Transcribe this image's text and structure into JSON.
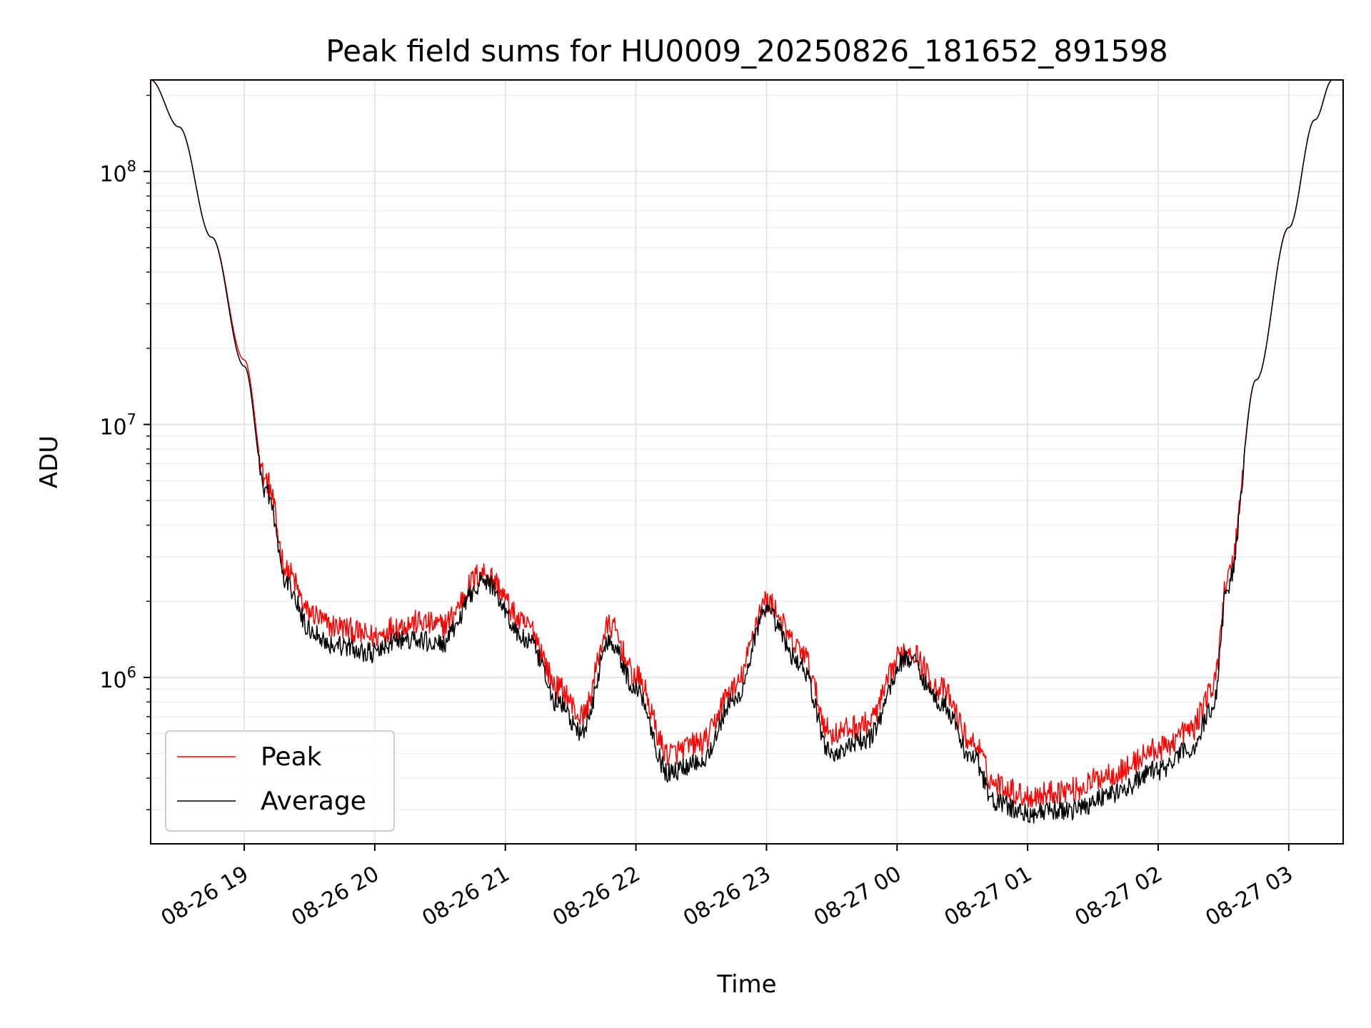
{
  "chart_data": {
    "type": "line",
    "title": "Peak field sums for HU0009_20250826_181652_891598",
    "xlabel": "Time",
    "ylabel": "ADU",
    "y_scale": "log",
    "ylim": [
      220000,
      230000000
    ],
    "xlim": [
      "2025-08-26 18:17",
      "2025-08-27 03:25"
    ],
    "grid": true,
    "legend_position": "lower-left",
    "x_tick_labels": [
      "08-26 19",
      "08-26 20",
      "08-26 21",
      "08-26 22",
      "08-26 23",
      "08-27 00",
      "08-27 01",
      "08-27 02",
      "08-27 03"
    ],
    "x_ticks": [
      "2025-08-26 19:00",
      "2025-08-26 20:00",
      "2025-08-26 21:00",
      "2025-08-26 22:00",
      "2025-08-26 23:00",
      "2025-08-27 00:00",
      "2025-08-27 01:00",
      "2025-08-27 02:00",
      "2025-08-27 03:00"
    ],
    "y_tick_labels": [
      {
        "value": 1000000,
        "base": "10",
        "exp": "6"
      },
      {
        "value": 10000000,
        "base": "10",
        "exp": "7"
      },
      {
        "value": 100000000,
        "base": "10",
        "exp": "8"
      }
    ],
    "series": [
      {
        "name": "Peak",
        "color": "#ff0000",
        "x": [
          "2025-08-26 18:17",
          "2025-08-26 18:30",
          "2025-08-26 18:45",
          "2025-08-26 19:00",
          "2025-08-26 19:10",
          "2025-08-26 19:20",
          "2025-08-26 19:30",
          "2025-08-26 19:40",
          "2025-08-26 20:00",
          "2025-08-26 20:10",
          "2025-08-26 20:20",
          "2025-08-26 20:30",
          "2025-08-26 20:50",
          "2025-08-26 21:10",
          "2025-08-26 21:25",
          "2025-08-26 21:35",
          "2025-08-26 21:48",
          "2025-08-26 22:00",
          "2025-08-26 22:15",
          "2025-08-26 22:30",
          "2025-08-26 22:45",
          "2025-08-26 23:00",
          "2025-08-26 23:15",
          "2025-08-26 23:30",
          "2025-08-26 23:45",
          "2025-08-27 00:05",
          "2025-08-27 00:20",
          "2025-08-27 00:35",
          "2025-08-27 00:45",
          "2025-08-27 01:00",
          "2025-08-27 01:20",
          "2025-08-27 01:40",
          "2025-08-27 02:00",
          "2025-08-27 02:15",
          "2025-08-27 02:25",
          "2025-08-27 02:32",
          "2025-08-27 02:45",
          "2025-08-27 03:00",
          "2025-08-27 03:12",
          "2025-08-27 03:20"
        ],
        "y": [
          230000000,
          150000000,
          55000000,
          18000000,
          6000000,
          2600000,
          1800000,
          1600000,
          1450000,
          1600000,
          1650000,
          1600000,
          2600000,
          1600000,
          900000,
          700000,
          1600000,
          1000000,
          500000,
          550000,
          900000,
          2000000,
          1300000,
          600000,
          650000,
          1300000,
          900000,
          550000,
          380000,
          340000,
          360000,
          420000,
          520000,
          620000,
          900000,
          2500000,
          15000000,
          60000000,
          160000000,
          230000000
        ]
      },
      {
        "name": "Average",
        "color": "#000000",
        "x": [
          "2025-08-26 18:17",
          "2025-08-26 18:30",
          "2025-08-26 18:45",
          "2025-08-26 19:00",
          "2025-08-26 19:10",
          "2025-08-26 19:20",
          "2025-08-26 19:30",
          "2025-08-26 19:40",
          "2025-08-26 20:00",
          "2025-08-26 20:10",
          "2025-08-26 20:20",
          "2025-08-26 20:30",
          "2025-08-26 20:50",
          "2025-08-26 21:10",
          "2025-08-26 21:25",
          "2025-08-26 21:35",
          "2025-08-26 21:48",
          "2025-08-26 22:00",
          "2025-08-26 22:15",
          "2025-08-26 22:30",
          "2025-08-26 22:45",
          "2025-08-26 23:00",
          "2025-08-26 23:15",
          "2025-08-26 23:30",
          "2025-08-26 23:45",
          "2025-08-27 00:05",
          "2025-08-27 00:20",
          "2025-08-27 00:35",
          "2025-08-27 00:45",
          "2025-08-27 01:00",
          "2025-08-27 01:20",
          "2025-08-27 01:40",
          "2025-08-27 02:00",
          "2025-08-27 02:15",
          "2025-08-27 02:25",
          "2025-08-27 02:32",
          "2025-08-27 02:45",
          "2025-08-27 03:00",
          "2025-08-27 03:12",
          "2025-08-27 03:20"
        ],
        "y": [
          230000000,
          150000000,
          55000000,
          17000000,
          5500000,
          2300000,
          1550000,
          1350000,
          1250000,
          1400000,
          1400000,
          1350000,
          2400000,
          1400000,
          780000,
          600000,
          1400000,
          900000,
          420000,
          470000,
          800000,
          1800000,
          1150000,
          500000,
          560000,
          1200000,
          800000,
          480000,
          320000,
          290000,
          300000,
          350000,
          430000,
          520000,
          750000,
          2300000,
          15000000,
          60000000,
          160000000,
          230000000
        ]
      }
    ]
  }
}
